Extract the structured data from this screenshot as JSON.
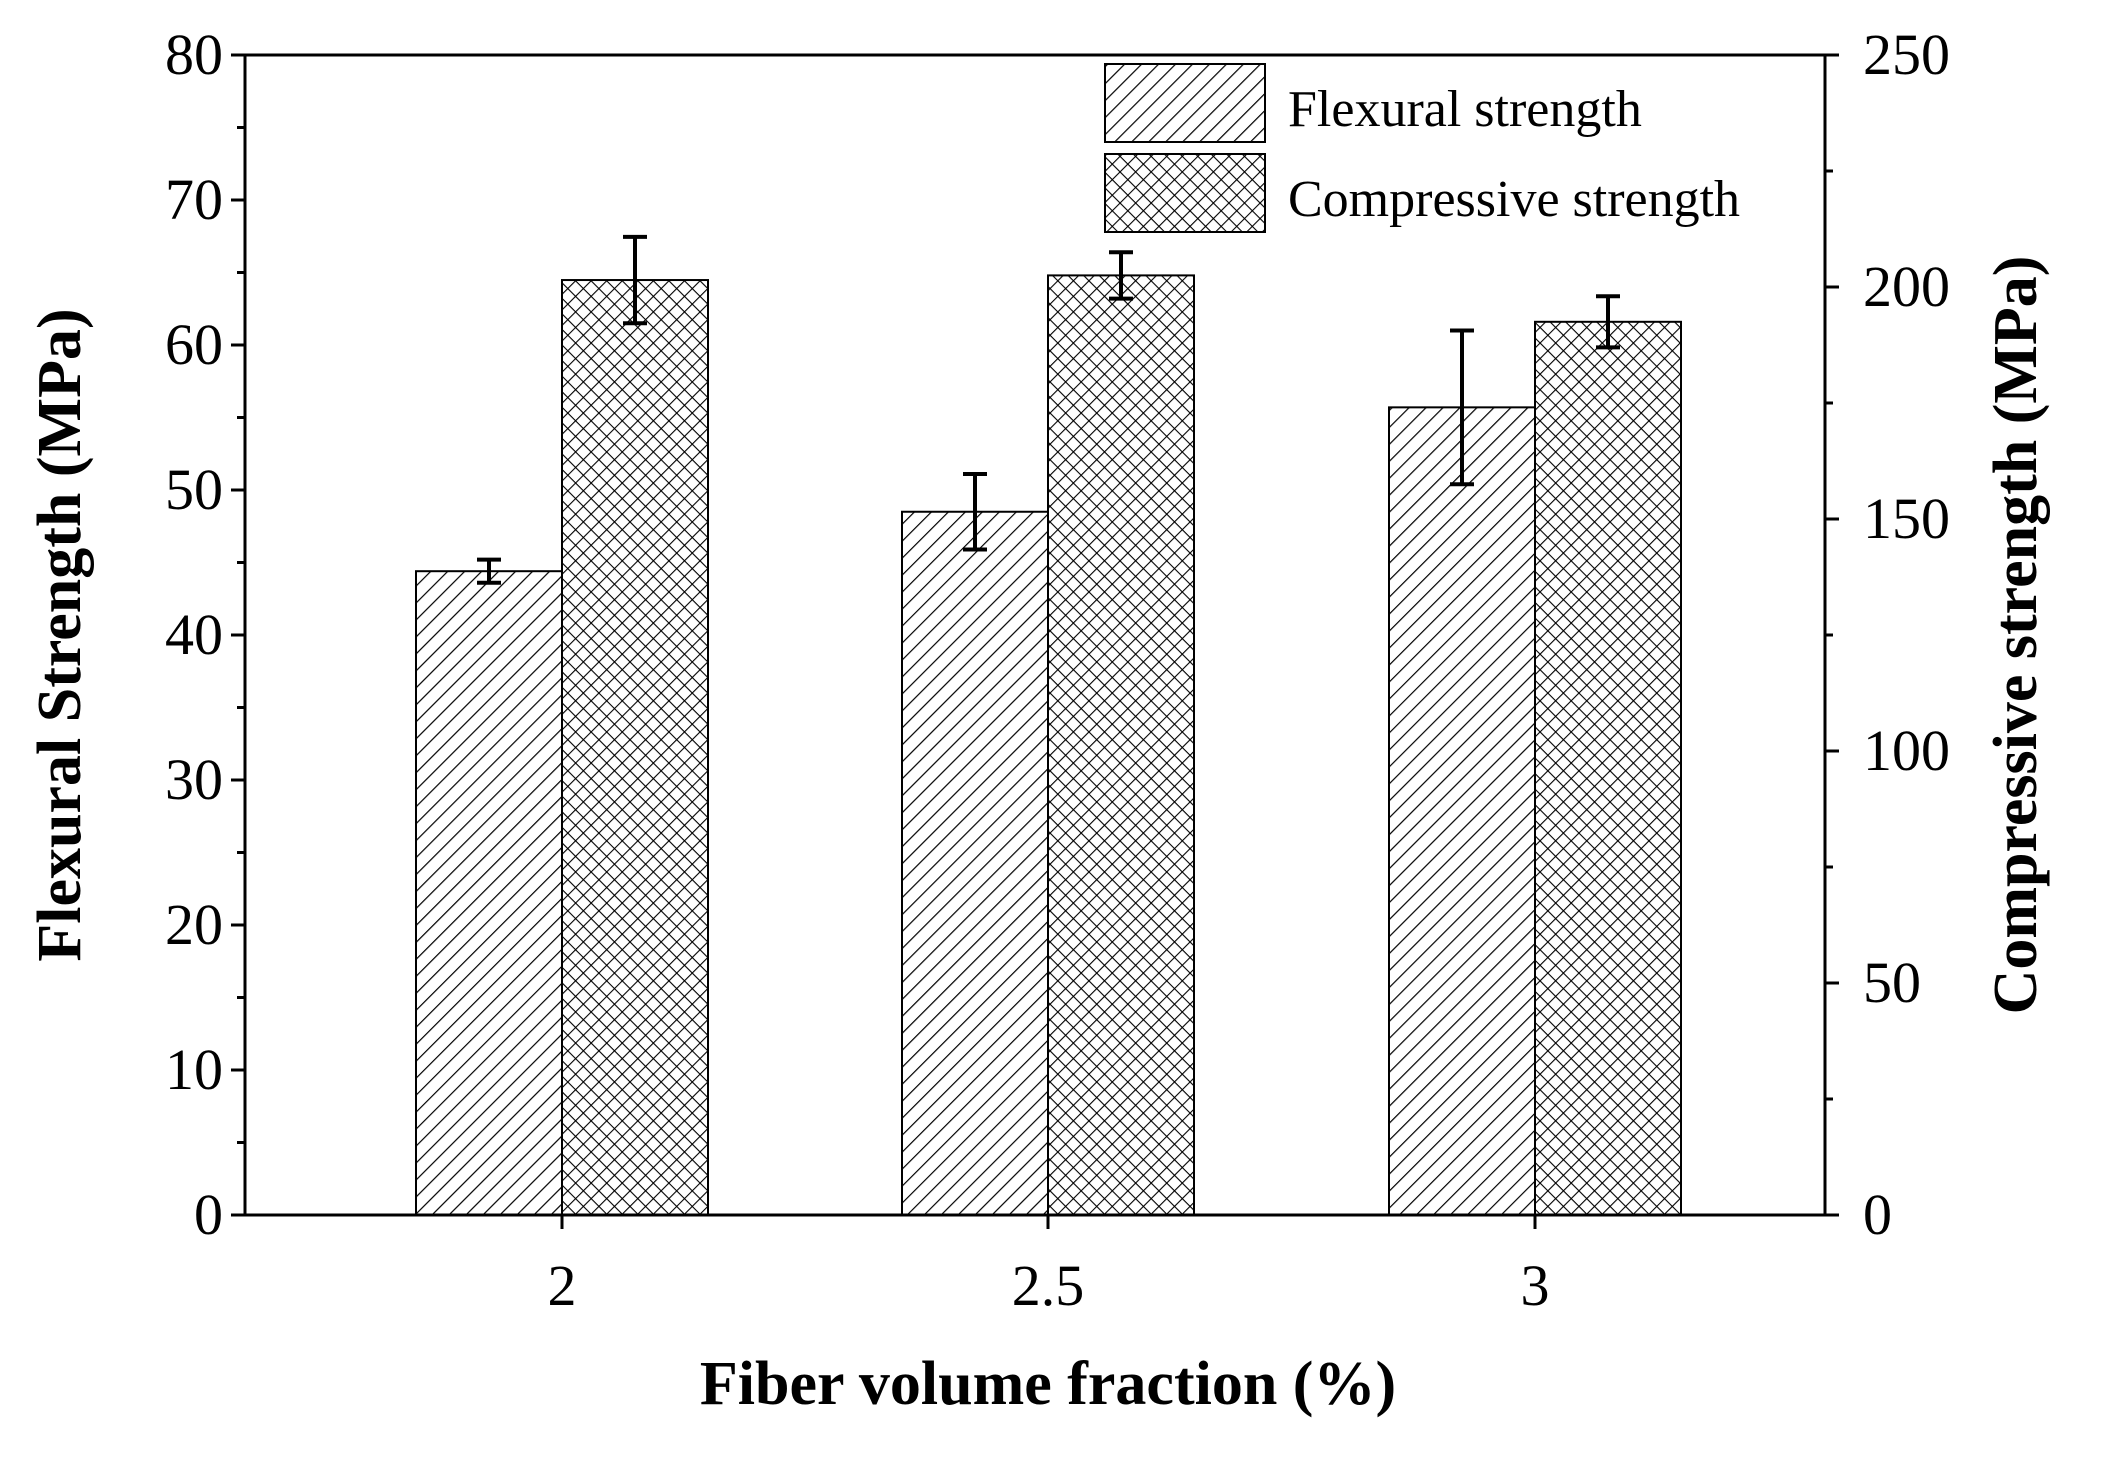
{
  "chart_data": {
    "type": "bar",
    "xlabel": "Fiber volume fraction (%)",
    "ylabel": "Flexural Strength (MPa)",
    "y2label": "Compressive strength (MPa)",
    "categories": [
      "2",
      "2.5",
      "3"
    ],
    "ylim": [
      0,
      80
    ],
    "y2lim": [
      0,
      250
    ],
    "yticks": [
      "0",
      "10",
      "20",
      "30",
      "40",
      "50",
      "60",
      "70",
      "80"
    ],
    "y2ticks": [
      "0",
      "50",
      "100",
      "150",
      "200",
      "250"
    ],
    "legend_position": "top-right",
    "series": [
      {
        "name": "Flexural strength",
        "axis": "left",
        "pattern": "hatch",
        "values": [
          44.4,
          48.5,
          55.7
        ],
        "errors": [
          0.8,
          2.6,
          5.3
        ]
      },
      {
        "name": "Compressive strength",
        "axis": "right",
        "pattern": "crosshatch",
        "values": [
          201.5,
          202.5,
          192.5
        ],
        "errors": [
          9.3,
          5.0,
          5.5
        ]
      }
    ]
  }
}
